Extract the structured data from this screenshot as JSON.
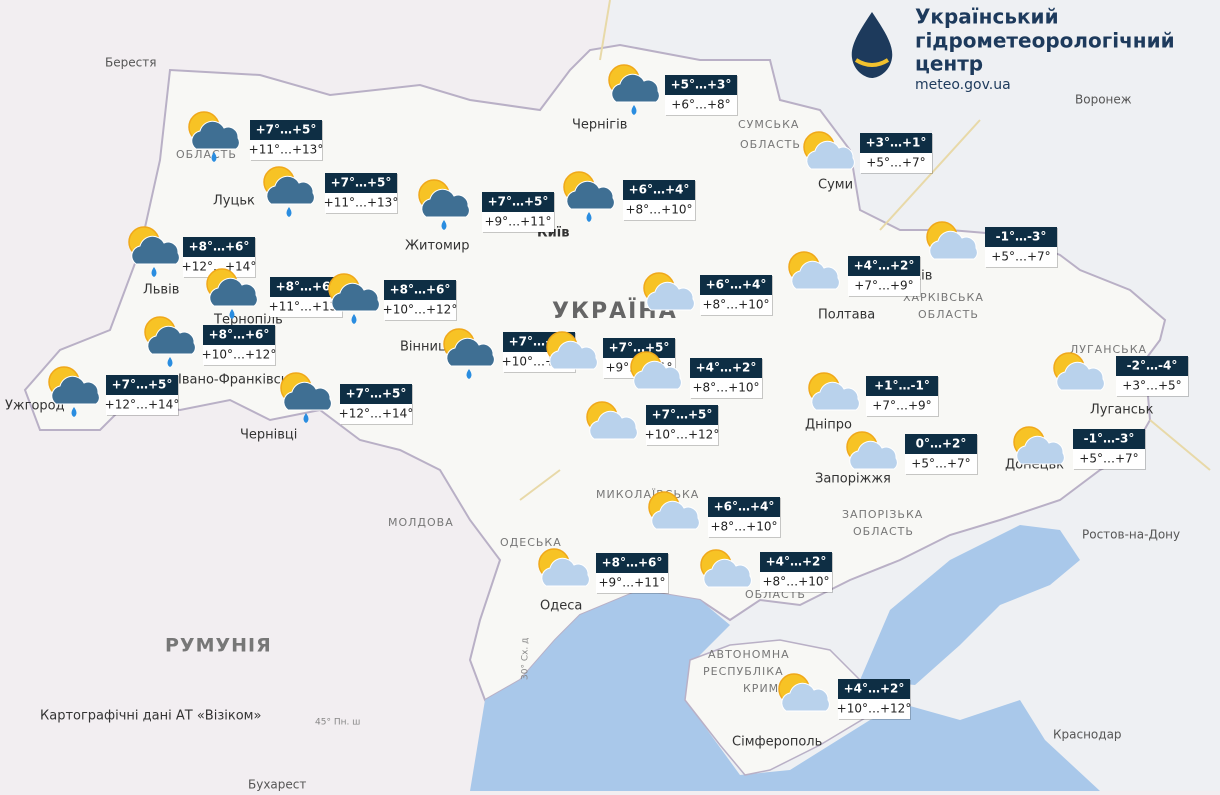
{
  "header": {
    "title_lines": [
      "Український",
      "гідрометеорологічний",
      "центр"
    ],
    "url": "meteo.gov.ua"
  },
  "map_labels": [
    "Берестя",
    "Воронеж",
    "Чернігів",
    "СУМСЬКА",
    "ОБЛАСТЬ",
    "Суми",
    "ОБЛАСТЬ",
    "Луцьк",
    "Житомир",
    "Київ",
    "УКРАЇНА",
    "Львів",
    "Тернопіль",
    "Вінниця",
    "Івано-Франківськ",
    "Ужгород",
    "Чернівці",
    "Полтава",
    "рків",
    "ХАРКІВСЬКА",
    "ОБЛАСТЬ",
    "ЛУГАНСЬКА",
    "Луганськ",
    "Дніпро",
    "Запоріжжя",
    "ЗАПОРІЗЬКА",
    "ОБЛАСТЬ",
    "Донецьк",
    "Ростов-на-Дону",
    "МОЛДОВА",
    "МИКОЛАЇВСЬКА",
    "ОДЕСЬКА",
    "Одеса",
    "ОБЛАСТЬ",
    "АВТОНОМНА",
    "РЕСПУБЛІКА",
    "КРИМ",
    "Сімферополь",
    "Краснодар",
    "РУМУНІЯ",
    "Бухарест",
    "45° Пн. ш",
    "30° Сх. д"
  ],
  "forecasts": [
    {
      "night": "+7°…+5°",
      "day": "+11°…+13°"
    },
    {
      "night": "+7°…+5°",
      "day": "+11°…+13°"
    },
    {
      "night": "+7°…+5°",
      "day": "+9°…+11°"
    },
    {
      "night": "+6°…+4°",
      "day": "+8°…+10°"
    },
    {
      "night": "+5°…+3°",
      "day": "+6°…+8°"
    },
    {
      "night": "+3°…+1°",
      "day": "+5°…+7°"
    },
    {
      "night": "-1°…-3°",
      "day": "+5°…+7°"
    },
    {
      "night": "+4°…+2°",
      "day": "+7°…+9°"
    },
    {
      "night": "+8°…+6°",
      "day": "+12°…+14°"
    },
    {
      "night": "+8°…+6°",
      "day": "+11°…+13°"
    },
    {
      "night": "+8°…+6°",
      "day": "+10°…+12°"
    },
    {
      "night": "+8°…+6°",
      "day": "+10°…+12°"
    },
    {
      "night": "+7°…+5°",
      "day": "+12°…+14°"
    },
    {
      "night": "+7°…+5°",
      "day": "+12°…+14°"
    },
    {
      "night": "+7°…+5°",
      "day": "+10°…+12°"
    },
    {
      "night": "+6°…+4°",
      "day": "+8°…+10°"
    },
    {
      "night": "+7°…+5°",
      "day": "+9°…+11°"
    },
    {
      "night": "+4°…+2°",
      "day": "+8°…+10°"
    },
    {
      "night": "+7°…+5°",
      "day": "+10°…+12°"
    },
    {
      "night": "+1°…-1°",
      "day": "+7°…+9°"
    },
    {
      "night": "-2°…-4°",
      "day": "+3°…+5°"
    },
    {
      "night": "0°…+2°",
      "day": "+5°…+7°"
    },
    {
      "night": "-1°…-3°",
      "day": "+5°…+7°"
    },
    {
      "night": "+6°…+4°",
      "day": "+8°…+10°"
    },
    {
      "night": "+8°…+6°",
      "day": "+9°…+11°"
    },
    {
      "night": "+4°…+2°",
      "day": "+8°…+10°"
    },
    {
      "night": "+4°…+2°",
      "day": "+10°…+12°"
    }
  ],
  "attribution": "Картографічні дані АТ «Візіком»"
}
